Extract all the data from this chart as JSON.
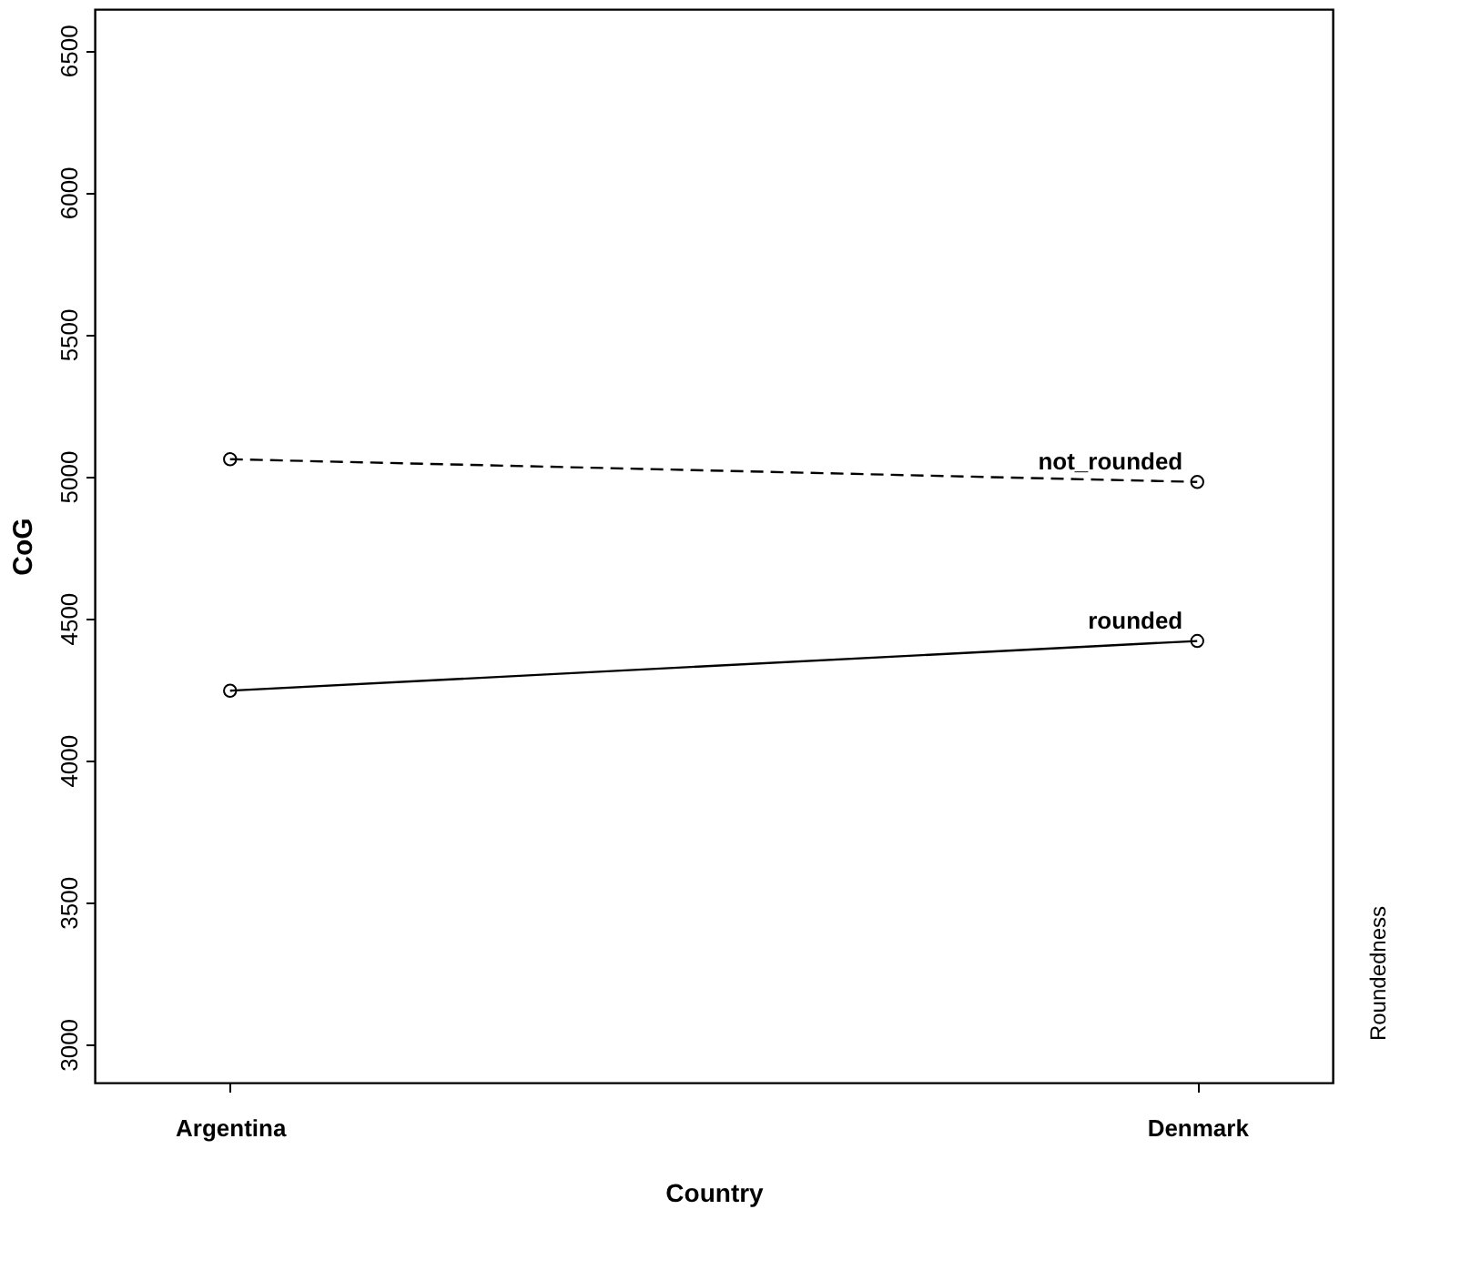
{
  "chart_data": {
    "type": "line",
    "xlabel": "Country",
    "ylabel": "CoG",
    "legend_title": "Roundedness",
    "categories": [
      "Argentina",
      "Denmark"
    ],
    "series": [
      {
        "name": "not_rounded",
        "color": "#000000",
        "line_style": "dashed",
        "values": [
          5060,
          4980
        ]
      },
      {
        "name": "rounded",
        "color": "#000000",
        "line_style": "solid",
        "values": [
          4245,
          4420
        ]
      }
    ],
    "ylim": [
      2865,
      6645
    ],
    "yticks": [
      3000,
      3500,
      4000,
      4500,
      5000,
      5500,
      6000,
      6500
    ],
    "marker": "circle",
    "grid": false
  }
}
